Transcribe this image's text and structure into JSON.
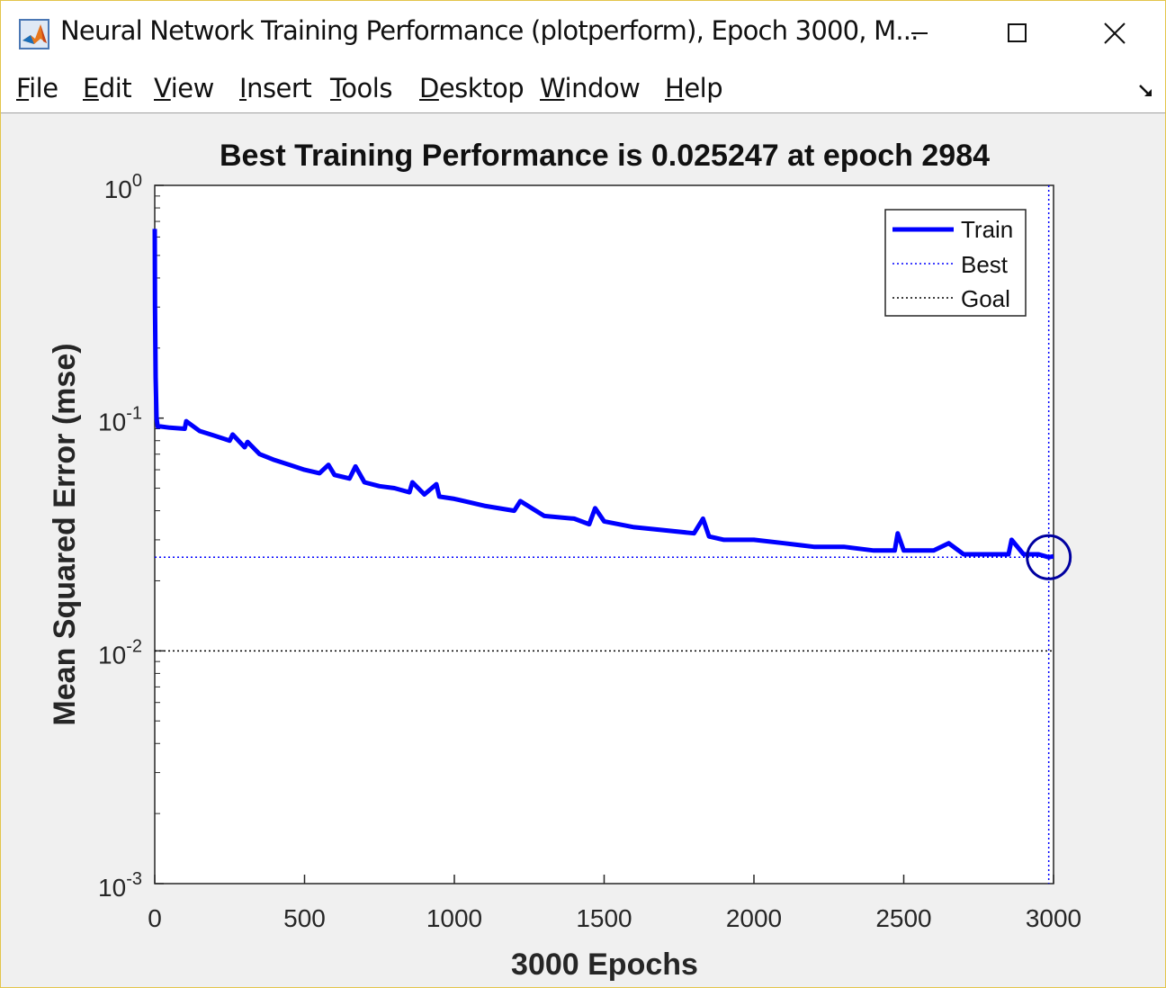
{
  "window": {
    "title": "Neural Network Training Performance (plotperform), Epoch 3000, M...",
    "app_icon": "matlab-icon",
    "controls": [
      "minimize-icon",
      "maximize-icon",
      "close-icon"
    ]
  },
  "menu": [
    {
      "accel": "F",
      "rest": "ile"
    },
    {
      "accel": "E",
      "rest": "dit"
    },
    {
      "accel": "V",
      "rest": "iew"
    },
    {
      "accel": "I",
      "rest": "nsert"
    },
    {
      "accel": "T",
      "rest": "ools"
    },
    {
      "accel": "D",
      "rest": "esktop"
    },
    {
      "accel": "W",
      "rest": "indow"
    },
    {
      "accel": "H",
      "rest": "elp"
    }
  ],
  "dock_icon": "dock-arrow-icon",
  "chart_data": {
    "type": "line",
    "title": "Best Training Performance is 0.025247 at epoch 2984",
    "xlabel": "3000 Epochs",
    "ylabel": "Mean Squared Error  (mse)",
    "xlim": [
      0,
      3000
    ],
    "ylim": [
      0.001,
      1
    ],
    "yscale": "log",
    "xticks": [
      "0",
      "500",
      "1000",
      "1500",
      "2000",
      "2500",
      "3000"
    ],
    "yticks": [
      {
        "base": "10",
        "exp": "0"
      },
      {
        "base": "10",
        "exp": "-1"
      },
      {
        "base": "10",
        "exp": "-2"
      },
      {
        "base": "10",
        "exp": "-3"
      }
    ],
    "legend_position": "top-right",
    "series": [
      {
        "name": "Train",
        "color": "#0000ff",
        "style": "solid",
        "x": [
          0,
          1,
          3,
          6,
          10,
          20,
          50,
          100,
          105,
          150,
          200,
          250,
          260,
          300,
          310,
          350,
          400,
          450,
          500,
          550,
          580,
          600,
          650,
          670,
          700,
          750,
          800,
          850,
          860,
          900,
          940,
          950,
          1000,
          1100,
          1200,
          1220,
          1300,
          1400,
          1450,
          1470,
          1500,
          1600,
          1700,
          1800,
          1830,
          1850,
          1900,
          2000,
          2100,
          2200,
          2300,
          2400,
          2470,
          2480,
          2500,
          2600,
          2650,
          2700,
          2800,
          2850,
          2860,
          2900,
          2950,
          2984,
          3000
        ],
        "y": [
          0.65,
          0.3,
          0.15,
          0.1,
          0.092,
          0.092,
          0.091,
          0.09,
          0.097,
          0.088,
          0.084,
          0.08,
          0.085,
          0.075,
          0.079,
          0.07,
          0.066,
          0.063,
          0.06,
          0.058,
          0.063,
          0.057,
          0.055,
          0.062,
          0.053,
          0.051,
          0.05,
          0.048,
          0.053,
          0.047,
          0.052,
          0.046,
          0.045,
          0.042,
          0.04,
          0.044,
          0.038,
          0.037,
          0.035,
          0.041,
          0.036,
          0.034,
          0.033,
          0.032,
          0.037,
          0.031,
          0.03,
          0.03,
          0.029,
          0.028,
          0.028,
          0.027,
          0.027,
          0.032,
          0.027,
          0.027,
          0.029,
          0.026,
          0.026,
          0.026,
          0.03,
          0.026,
          0.026,
          0.025247,
          0.0255
        ]
      },
      {
        "name": "Best",
        "color": "#0000ff",
        "style": "dotted",
        "x": [
          2984,
          2984
        ],
        "y": [
          0.001,
          1
        ],
        "h_y": 0.025247
      },
      {
        "name": "Goal",
        "color": "#000000",
        "style": "dotted",
        "y": [
          0.01,
          0.01
        ]
      }
    ],
    "best_marker": {
      "x": 2984,
      "y": 0.025247
    }
  }
}
